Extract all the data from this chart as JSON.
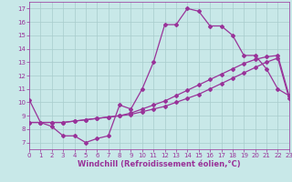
{
  "xlabel": "Windchill (Refroidissement éolien,°C)",
  "ylabel": "",
  "xlim": [
    0,
    23
  ],
  "ylim": [
    6.5,
    17.5
  ],
  "xticks": [
    0,
    1,
    2,
    3,
    4,
    5,
    6,
    7,
    8,
    9,
    10,
    11,
    12,
    13,
    14,
    15,
    16,
    17,
    18,
    19,
    20,
    21,
    22,
    23
  ],
  "yticks": [
    7,
    8,
    9,
    10,
    11,
    12,
    13,
    14,
    15,
    16,
    17
  ],
  "background_color": "#c8e8e8",
  "grid_color": "#a8cccc",
  "line_color": "#993399",
  "line1_y": [
    10.2,
    8.5,
    8.2,
    7.5,
    7.5,
    7.0,
    7.3,
    7.5,
    9.8,
    9.5,
    11.0,
    13.0,
    15.8,
    15.8,
    17.0,
    16.8,
    15.7,
    15.7,
    15.0,
    13.5,
    13.5,
    12.5,
    11.0,
    10.5
  ],
  "line2_y": [
    8.5,
    8.5,
    8.5,
    8.5,
    8.6,
    8.7,
    8.8,
    8.9,
    9.0,
    9.1,
    9.3,
    9.5,
    9.7,
    10.0,
    10.3,
    10.6,
    11.0,
    11.4,
    11.8,
    12.2,
    12.6,
    13.0,
    13.3,
    10.3
  ],
  "line3_y": [
    8.5,
    8.5,
    8.5,
    8.5,
    8.6,
    8.7,
    8.8,
    8.9,
    9.0,
    9.2,
    9.5,
    9.8,
    10.1,
    10.5,
    10.9,
    11.3,
    11.7,
    12.1,
    12.5,
    12.9,
    13.2,
    13.4,
    13.5,
    10.5
  ],
  "marker": "D",
  "markersize": 2.0,
  "linewidth": 0.9,
  "tick_fontsize": 5.0,
  "label_fontsize": 6.0
}
